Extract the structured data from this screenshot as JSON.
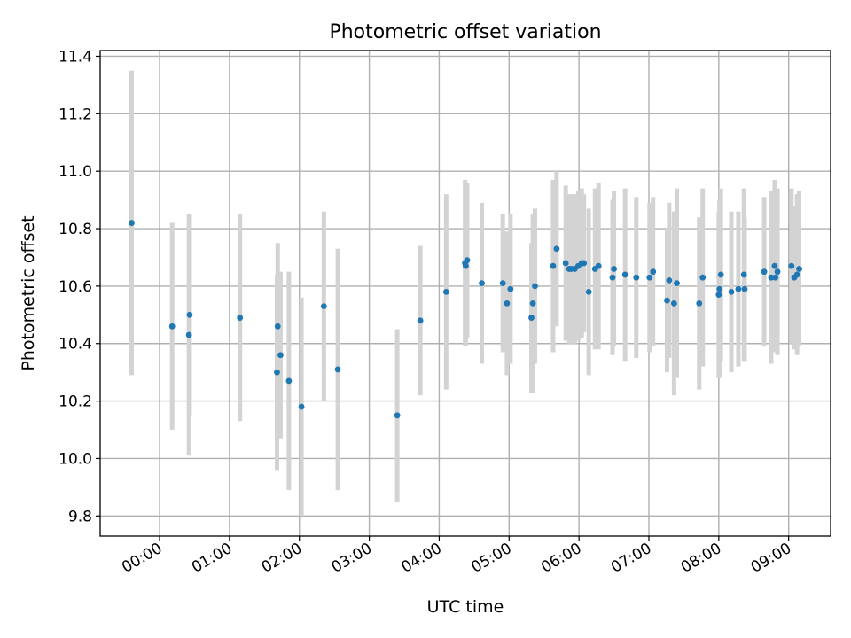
{
  "chart_data": {
    "type": "scatter",
    "title": "Photometric offset variation",
    "xlabel": "UTC time",
    "ylabel": "Photometric offset",
    "xlim": [
      -0.85,
      9.6
    ],
    "ylim": [
      9.73,
      11.42
    ],
    "grid": true,
    "legend": "none",
    "colors": {
      "point": "#1f77b4",
      "errorbar": "#d3d3d3",
      "grid": "#b0b0b0"
    },
    "x_ticks": [
      {
        "value": 0,
        "label": "00:00"
      },
      {
        "value": 1,
        "label": "01:00"
      },
      {
        "value": 2,
        "label": "02:00"
      },
      {
        "value": 3,
        "label": "03:00"
      },
      {
        "value": 4,
        "label": "04:00"
      },
      {
        "value": 5,
        "label": "05:00"
      },
      {
        "value": 6,
        "label": "06:00"
      },
      {
        "value": 7,
        "label": "07:00"
      },
      {
        "value": 8,
        "label": "08:00"
      },
      {
        "value": 9,
        "label": "09:00"
      }
    ],
    "y_ticks": [
      {
        "value": 9.8,
        "label": "9.8"
      },
      {
        "value": 10.0,
        "label": "10.0"
      },
      {
        "value": 10.2,
        "label": "10.2"
      },
      {
        "value": 10.4,
        "label": "10.4"
      },
      {
        "value": 10.6,
        "label": "10.6"
      },
      {
        "value": 10.8,
        "label": "10.8"
      },
      {
        "value": 11.0,
        "label": "11.0"
      },
      {
        "value": 11.2,
        "label": "11.2"
      },
      {
        "value": 11.4,
        "label": "11.4"
      }
    ],
    "x_hours": [
      -0.4,
      0.18,
      0.42,
      0.43,
      1.15,
      1.68,
      1.69,
      1.73,
      1.85,
      2.03,
      2.35,
      2.55,
      3.4,
      3.73,
      4.1,
      4.37,
      4.38,
      4.4,
      4.61,
      4.91,
      4.97,
      5.02,
      5.32,
      5.34,
      5.37,
      5.63,
      5.68,
      5.81,
      5.86,
      5.89,
      5.94,
      5.99,
      6.04,
      6.07,
      6.14,
      6.23,
      6.28,
      6.48,
      6.5,
      6.66,
      6.82,
      7.01,
      7.06,
      7.26,
      7.29,
      7.36,
      7.4,
      7.72,
      7.77,
      8.0,
      8.01,
      8.03,
      8.18,
      8.28,
      8.36,
      8.37,
      8.65,
      8.75,
      8.8,
      8.81,
      8.84,
      9.04,
      9.08,
      9.12,
      9.15
    ],
    "y": [
      10.82,
      10.46,
      10.43,
      10.5,
      10.49,
      10.3,
      10.46,
      10.36,
      10.27,
      10.18,
      10.53,
      10.31,
      10.15,
      10.48,
      10.58,
      10.68,
      10.67,
      10.69,
      10.61,
      10.61,
      10.54,
      10.59,
      10.49,
      10.54,
      10.6,
      10.67,
      10.73,
      10.68,
      10.66,
      10.66,
      10.66,
      10.67,
      10.68,
      10.68,
      10.58,
      10.66,
      10.67,
      10.63,
      10.66,
      10.64,
      10.63,
      10.63,
      10.65,
      10.55,
      10.62,
      10.54,
      10.61,
      10.54,
      10.63,
      10.57,
      10.59,
      10.64,
      10.58,
      10.59,
      10.64,
      10.59,
      10.65,
      10.63,
      10.67,
      10.63,
      10.65,
      10.67,
      10.63,
      10.64,
      10.66
    ],
    "yerr": [
      0.53,
      0.36,
      0.42,
      0.35,
      0.36,
      0.34,
      0.29,
      0.29,
      0.38,
      0.38,
      0.33,
      0.42,
      0.3,
      0.26,
      0.34,
      0.29,
      0.28,
      0.27,
      0.28,
      0.24,
      0.25,
      0.26,
      0.26,
      0.31,
      0.27,
      0.3,
      0.27,
      0.27,
      0.26,
      0.26,
      0.26,
      0.26,
      0.26,
      0.24,
      0.29,
      0.28,
      0.29,
      0.27,
      0.27,
      0.3,
      0.28,
      0.26,
      0.26,
      0.25,
      0.27,
      0.32,
      0.33,
      0.3,
      0.31,
      0.29,
      0.31,
      0.3,
      0.28,
      0.27,
      0.3,
      0.25,
      0.26,
      0.3,
      0.3,
      0.26,
      0.29,
      0.27,
      0.25,
      0.28,
      0.27
    ]
  }
}
